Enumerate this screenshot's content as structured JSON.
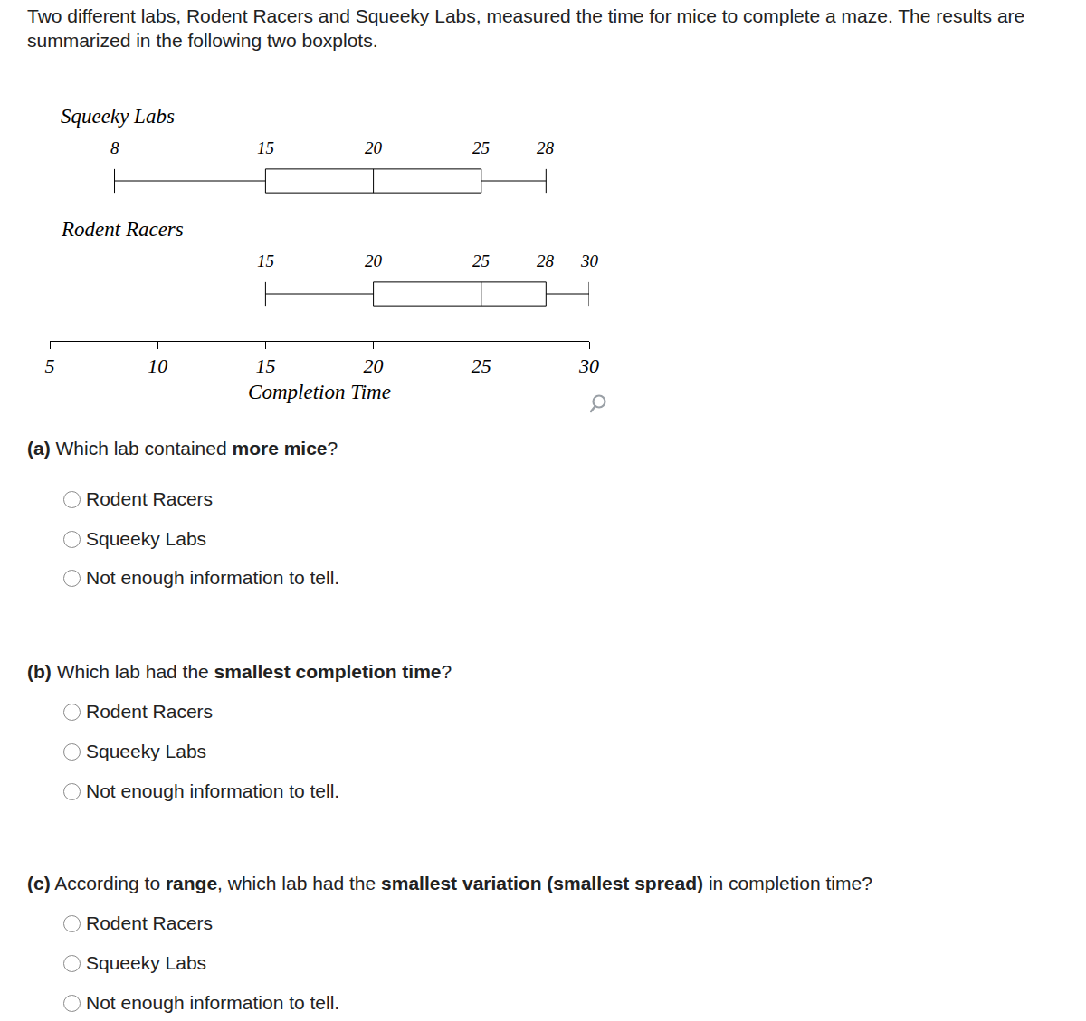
{
  "intro": "Two different labs, Rodent Racers and Squeeky Labs, measured the time for mice to complete a maze. The results are summarized in the following two boxplots.",
  "chart_data": {
    "type": "box",
    "orientation": "horizontal",
    "xlabel": "Completion Time",
    "xlim": [
      5,
      30
    ],
    "xticks": [
      5,
      10,
      15,
      20,
      25,
      30
    ],
    "grid": false,
    "data_labels": true,
    "color": "#000000",
    "series": [
      {
        "name": "Squeeky Labs",
        "min": 8,
        "q1": 15,
        "median": 20,
        "q3": 25,
        "max": 28
      },
      {
        "name": "Rodent Racers",
        "min": 15,
        "q1": 20,
        "median": 25,
        "q3": 28,
        "max": 30
      }
    ]
  },
  "questions": [
    {
      "label": "(a)",
      "before": "Which lab contained ",
      "bold": "more mice",
      "after": "?",
      "options": [
        "Rodent Racers",
        "Squeeky Labs",
        "Not enough information to tell."
      ]
    },
    {
      "label": "(b)",
      "before": "Which lab had the ",
      "bold": "smallest completion time",
      "after": "?",
      "options": [
        "Rodent Racers",
        "Squeeky Labs",
        "Not enough information to tell."
      ]
    },
    {
      "label": "(c)",
      "before": "According to ",
      "bold": "range",
      "after": ", which lab had the ",
      "bold2": "smallest variation (smallest spread)",
      "after2": " in completion time?",
      "options": [
        "Rodent Racers",
        "Squeeky Labs",
        "Not enough information to tell."
      ]
    }
  ]
}
